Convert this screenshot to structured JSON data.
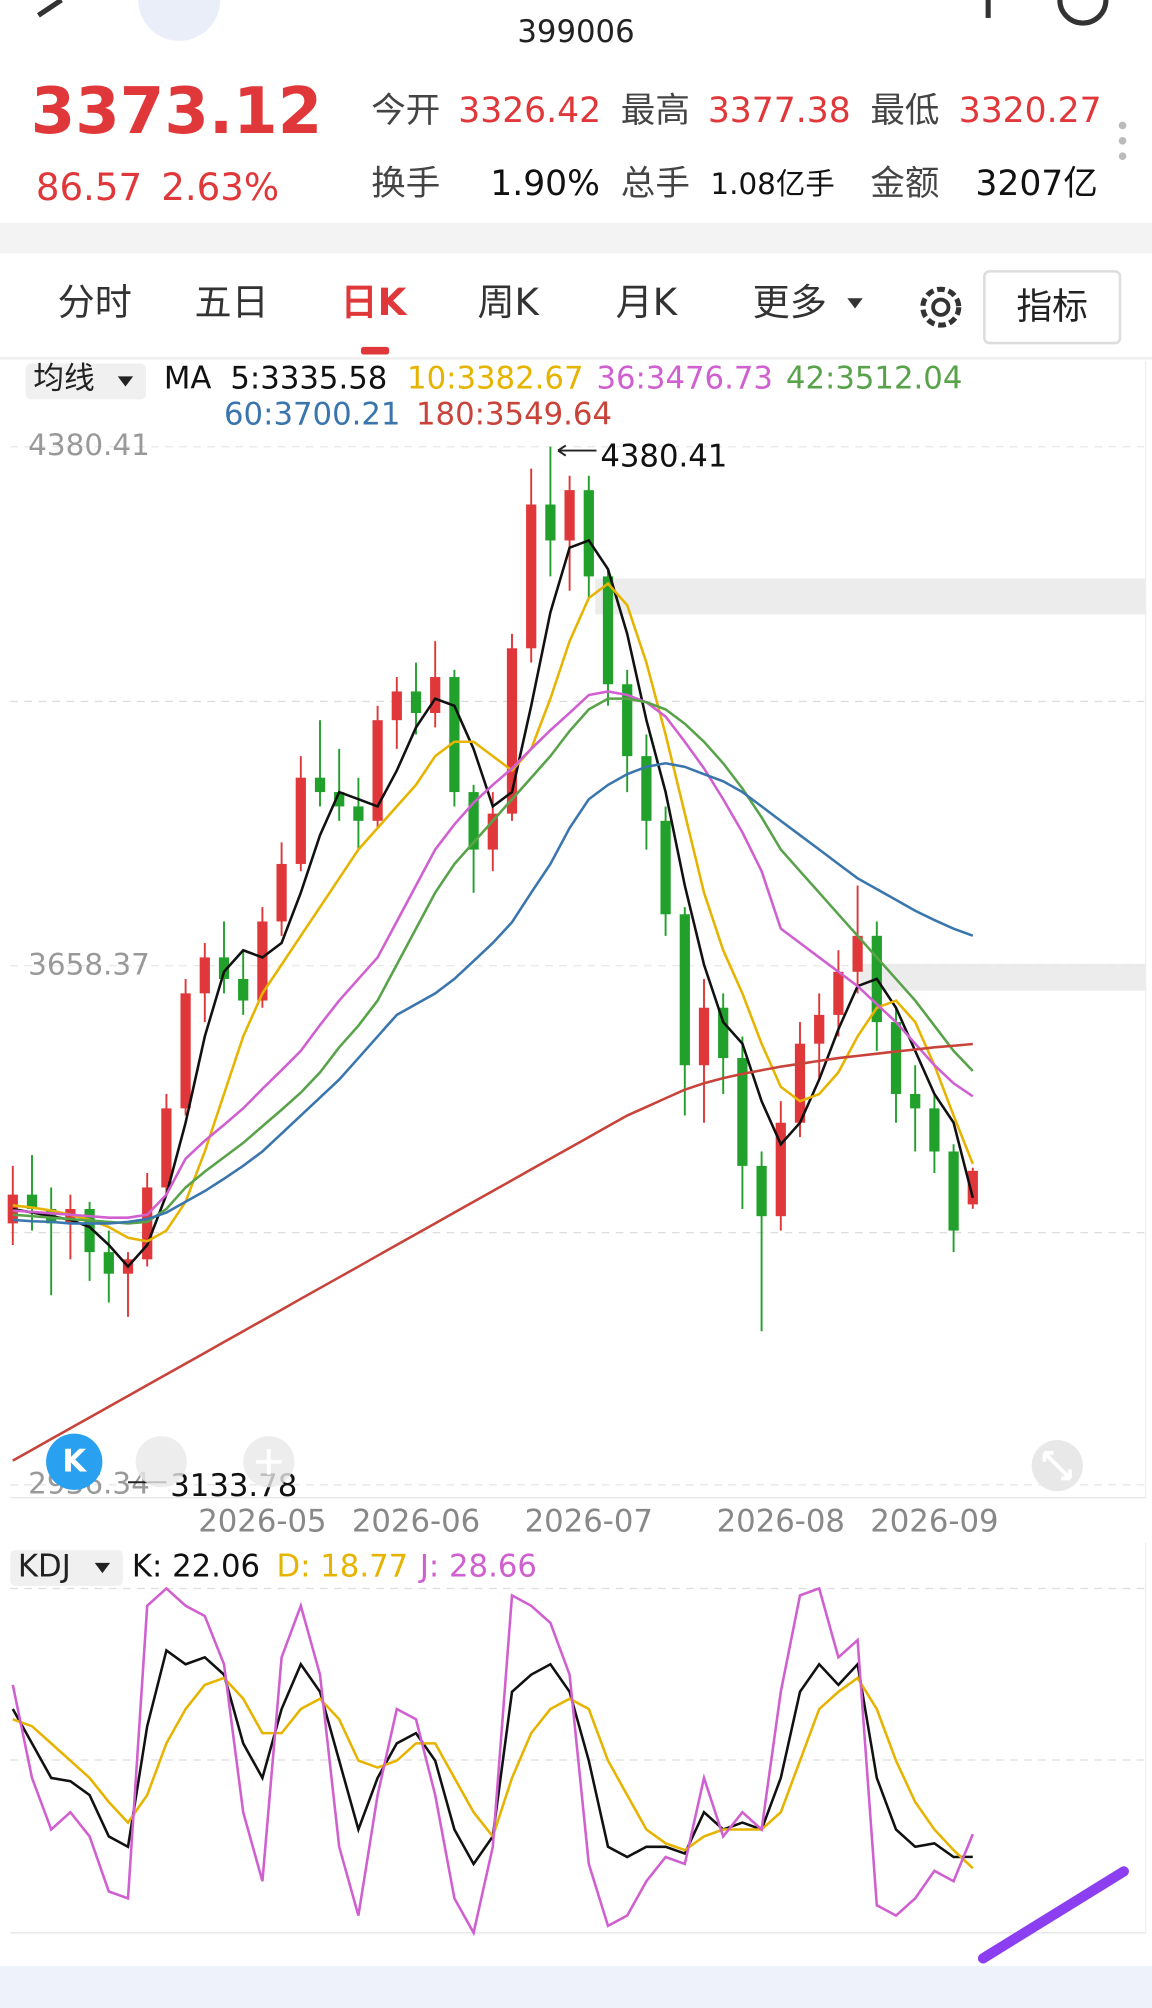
{
  "header": {
    "code": "399006",
    "price": "3373.12",
    "change": "86.57",
    "change_pct": "2.63%",
    "stats": [
      {
        "label": "今开",
        "value": "3326.42"
      },
      {
        "label": "最高",
        "value": "3377.38"
      },
      {
        "label": "最低",
        "value": "3320.27"
      },
      {
        "label": "换手",
        "value": "1.90%"
      },
      {
        "label": "总手",
        "value": "1.08亿手"
      },
      {
        "label": "金额",
        "value": "3207亿"
      }
    ]
  },
  "tabs": [
    "分时",
    "五日",
    "日K",
    "周K",
    "月K",
    "更多"
  ],
  "active_tab": 2,
  "button": "指标",
  "chart_data": [
    {
      "type": "candlestick",
      "indicator": "均线",
      "ma_label": "MA",
      "up_color": "#e0383a",
      "down_color": "#21a12b",
      "categories": [
        null,
        null,
        null,
        null,
        null,
        null,
        null,
        null,
        null,
        null,
        null,
        null,
        null,
        "2026-05",
        null,
        null,
        null,
        null,
        null,
        null,
        null,
        "2026-06",
        null,
        null,
        null,
        null,
        null,
        null,
        null,
        null,
        "2026-07",
        null,
        null,
        null,
        null,
        null,
        null,
        null,
        null,
        null,
        "2026-08",
        null,
        null,
        null,
        null,
        null,
        null,
        null,
        "2026-09",
        null,
        null
      ],
      "open": [
        3300,
        3340,
        3320,
        3300,
        3320,
        3260,
        3230,
        3250,
        3350,
        3460,
        3620,
        3670,
        3640,
        3610,
        3720,
        3800,
        3920,
        3900,
        3880,
        3860,
        4000,
        4040,
        4010,
        4060,
        3900,
        3820,
        3870,
        4100,
        4300,
        4250,
        4320,
        4200,
        4050,
        3950,
        3860,
        3730,
        3520,
        3600,
        3530,
        3380,
        3310,
        3440,
        3550,
        3590,
        3650,
        3700,
        3580,
        3480,
        3460,
        3400,
        3326.42
      ],
      "high": [
        3380,
        3395,
        3350,
        3340,
        3330,
        3290,
        3260,
        3370,
        3480,
        3640,
        3690,
        3720,
        3680,
        3740,
        3830,
        3950,
        4000,
        3960,
        3920,
        4020,
        4060,
        4080,
        4110,
        4070,
        3910,
        3900,
        4120,
        4350,
        4380.41,
        4340,
        4340,
        4210,
        4070,
        3980,
        3880,
        3740,
        3640,
        3620,
        3560,
        3400,
        3470,
        3580,
        3620,
        3680,
        3770,
        3720,
        3600,
        3520,
        3480,
        3410,
        3377.38
      ],
      "low": [
        3270,
        3290,
        3200,
        3250,
        3220,
        3190,
        3170,
        3240,
        3340,
        3450,
        3580,
        3620,
        3590,
        3600,
        3700,
        3790,
        3880,
        3860,
        3820,
        3850,
        3960,
        3980,
        3990,
        3880,
        3760,
        3790,
        3860,
        4080,
        4200,
        4180,
        4170,
        4020,
        3900,
        3820,
        3700,
        3450,
        3440,
        3480,
        3320,
        3150,
        3290,
        3420,
        3500,
        3560,
        3620,
        3540,
        3440,
        3400,
        3370,
        3260,
        3320.27
      ],
      "close": [
        3340,
        3320,
        3300,
        3320,
        3260,
        3230,
        3250,
        3350,
        3460,
        3620,
        3670,
        3640,
        3610,
        3720,
        3800,
        3920,
        3900,
        3880,
        3860,
        4000,
        4040,
        4010,
        4060,
        3900,
        3820,
        3870,
        4100,
        4300,
        4250,
        4320,
        4200,
        4050,
        3950,
        3860,
        3730,
        3520,
        3600,
        3530,
        3380,
        3310,
        3440,
        3550,
        3590,
        3650,
        3700,
        3580,
        3480,
        3460,
        3400,
        3290,
        3373.12
      ],
      "series": [
        {
          "name": "5:3335.58",
          "color": "#111111",
          "values": [
            3320,
            3315,
            3310,
            3305,
            3295,
            3270,
            3240,
            3270,
            3340,
            3440,
            3560,
            3650,
            3680,
            3670,
            3690,
            3760,
            3840,
            3900,
            3890,
            3880,
            3930,
            3990,
            4030,
            4020,
            3960,
            3880,
            3900,
            4020,
            4150,
            4240,
            4250,
            4210,
            4120,
            4000,
            3900,
            3770,
            3660,
            3580,
            3550,
            3470,
            3410,
            3440,
            3500,
            3570,
            3630,
            3640,
            3600,
            3540,
            3480,
            3440,
            3335.58
          ]
        },
        {
          "name": "10:3382.67",
          "color": "#e6b400",
          "values": [
            3325,
            3322,
            3318,
            3312,
            3305,
            3295,
            3280,
            3275,
            3290,
            3330,
            3400,
            3480,
            3560,
            3620,
            3660,
            3700,
            3740,
            3780,
            3820,
            3850,
            3880,
            3910,
            3950,
            3970,
            3970,
            3950,
            3930,
            3960,
            4030,
            4110,
            4170,
            4190,
            4160,
            4080,
            3980,
            3870,
            3760,
            3680,
            3620,
            3550,
            3490,
            3470,
            3480,
            3510,
            3560,
            3600,
            3610,
            3580,
            3520,
            3450,
            3382.67
          ]
        },
        {
          "name": "36:3476.73",
          "color": "#d05fd0",
          "values": [
            3318,
            3316,
            3314,
            3312,
            3310,
            3308,
            3308,
            3312,
            3340,
            3390,
            3415,
            3437,
            3460,
            3487,
            3513,
            3540,
            3576,
            3610,
            3640,
            3670,
            3720,
            3770,
            3820,
            3855,
            3885,
            3910,
            3933,
            3960,
            3986,
            4010,
            4035,
            4040,
            4035,
            4025,
            4005,
            3970,
            3933,
            3890,
            3844,
            3790,
            3710,
            3690,
            3670,
            3650,
            3630,
            3605,
            3580,
            3550,
            3520,
            3495,
            3476.73
          ]
        },
        {
          "name": "42:3512.04",
          "color": "#58a24a",
          "values": [
            3312,
            3310,
            3308,
            3306,
            3304,
            3302,
            3300,
            3302,
            3320,
            3350,
            3372,
            3392,
            3412,
            3435,
            3458,
            3482,
            3510,
            3545,
            3575,
            3610,
            3660,
            3710,
            3760,
            3800,
            3830,
            3860,
            3890,
            3920,
            3950,
            3985,
            4015,
            4030,
            4030,
            4025,
            4015,
            3995,
            3970,
            3940,
            3905,
            3865,
            3820,
            3790,
            3760,
            3730,
            3700,
            3670,
            3640,
            3610,
            3575,
            3540,
            3512.04
          ]
        },
        {
          "name": "60:3700.21",
          "color": "#3a76ad",
          "values": [
            3305,
            3303,
            3302,
            3300,
            3300,
            3300,
            3302,
            3306,
            3315,
            3330,
            3345,
            3362,
            3380,
            3400,
            3425,
            3450,
            3475,
            3500,
            3530,
            3560,
            3590,
            3605,
            3620,
            3640,
            3665,
            3690,
            3719,
            3760,
            3800,
            3850,
            3890,
            3910,
            3925,
            3935,
            3940,
            3935,
            3925,
            3915,
            3900,
            3880,
            3860,
            3840,
            3820,
            3800,
            3780,
            3765,
            3750,
            3735,
            3722,
            3710,
            3700.21
          ]
        },
        {
          "name": "180:3549.64",
          "color": "#c8433a",
          "values": [
            2970,
            2985,
            3000,
            3015,
            3030,
            3045,
            3060,
            3075,
            3090,
            3105,
            3120,
            3135,
            3150,
            3165,
            3180,
            3195,
            3210,
            3225,
            3240,
            3255,
            3270,
            3285,
            3300,
            3315,
            3330,
            3345,
            3360,
            3375,
            3390,
            3405,
            3420,
            3435,
            3450,
            3462,
            3474,
            3486,
            3495,
            3502,
            3508,
            3513,
            3518,
            3522,
            3526,
            3530,
            3533,
            3536,
            3539,
            3542,
            3545,
            3547,
            3549.64
          ]
        }
      ],
      "ylim": [
        2936.34,
        4380.41
      ],
      "yticks": [
        4380.41,
        3658.37,
        2936.34
      ],
      "annotations": [
        "4380.41",
        "3133.78"
      ]
    },
    {
      "type": "line",
      "indicator": "KDJ",
      "ylim": [
        0,
        100
      ],
      "series": [
        {
          "name": "K: 22.06",
          "color": "#111111",
          "values": [
            65,
            55,
            45,
            44,
            40,
            28,
            25,
            60,
            82,
            78,
            80,
            75,
            55,
            45,
            65,
            78,
            70,
            50,
            30,
            45,
            55,
            58,
            50,
            30,
            20,
            28,
            70,
            75,
            78,
            70,
            50,
            25,
            22,
            25,
            25,
            23,
            35,
            30,
            32,
            30,
            45,
            70,
            78,
            72,
            78,
            45,
            30,
            25,
            26,
            22,
            22.06
          ]
        },
        {
          "name": "D: 18.77",
          "color": "#e6b400",
          "values": [
            62,
            60,
            55,
            50,
            45,
            38,
            32,
            40,
            55,
            65,
            72,
            74,
            68,
            58,
            58,
            65,
            68,
            62,
            50,
            48,
            50,
            55,
            55,
            45,
            35,
            28,
            45,
            58,
            65,
            68,
            65,
            50,
            40,
            30,
            26,
            24,
            28,
            30,
            30,
            30,
            35,
            50,
            65,
            70,
            74,
            65,
            50,
            38,
            30,
            24,
            18.77
          ]
        },
        {
          "name": "J: 28.66",
          "color": "#d05fd0",
          "values": [
            72,
            45,
            30,
            35,
            28,
            12,
            10,
            95,
            100,
            95,
            92,
            78,
            35,
            15,
            80,
            95,
            75,
            25,
            5,
            40,
            65,
            62,
            40,
            10,
            0,
            25,
            98,
            95,
            90,
            75,
            20,
            2,
            5,
            15,
            22,
            20,
            45,
            28,
            35,
            30,
            70,
            98,
            100,
            80,
            85,
            8,
            5,
            10,
            18,
            15,
            28.66
          ]
        }
      ]
    }
  ]
}
